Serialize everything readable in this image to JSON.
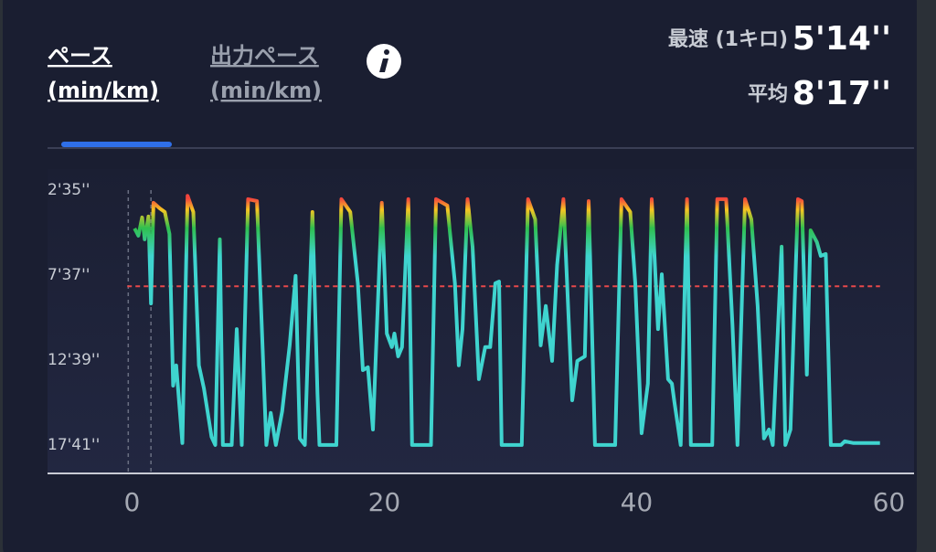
{
  "tabs": [
    {
      "title": "ペース",
      "unit": "(min/km)"
    },
    {
      "title": "出力ペース",
      "unit": "(min/km)"
    }
  ],
  "stats": [
    {
      "label": "最速 (1キロ)",
      "value": "5'14''"
    },
    {
      "label": "平均"
    }
  ],
  "chart_data": {
    "type": "line",
    "x": [
      0.2,
      0.5,
      0.8,
      1.0,
      1.3,
      1.5,
      1.7,
      2.2,
      2.6,
      2.97,
      3.26,
      3.5,
      3.99,
      4.4,
      4.86,
      5.3,
      5.7,
      6.3,
      6.6,
      6.96,
      7.2,
      7.9,
      8.3,
      8.7,
      9.2,
      9.9,
      10.65,
      11.0,
      11.4,
      11.9,
      12.5,
      12.97,
      13.3,
      13.7,
      14.3,
      14.7,
      14.86,
      16.2,
      16.6,
      17.3,
      17.9,
      18.3,
      18.7,
      19.1,
      19.8,
      20.2,
      20.6,
      20.8,
      21.1,
      21.4,
      21.9,
      22.2,
      23.7,
      24.1,
      25.0,
      25.6,
      25.9,
      26.2,
      26.6,
      27.0,
      27.5,
      28.0,
      28.4,
      28.8,
      29.1,
      29.3,
      30.9,
      31.4,
      31.96,
      32.4,
      32.8,
      33.3,
      33.7,
      34.2,
      34.9,
      35.3,
      35.9,
      36.2,
      36.7,
      38.3,
      38.8,
      39.5,
      39.9,
      40.4,
      40.9,
      41.2,
      41.7,
      42.0,
      42.5,
      42.8,
      43.0,
      43.5,
      44.0,
      44.3,
      46.0,
      46.4,
      47.1,
      47.6,
      48.0,
      48.6,
      49.1,
      49.6,
      50.1,
      50.5,
      50.8,
      51.5,
      51.8,
      52.2,
      52.8,
      53.1,
      53.5,
      53.8,
      54.3,
      54.6,
      55.0,
      55.4,
      56.2,
      56.5,
      57.2,
      59.3
    ],
    "values": [
      291,
      317,
      252,
      330,
      249,
      558,
      200,
      220,
      233,
      311,
      850,
      778,
      1054,
      175,
      233,
      778,
      860,
      1032,
      1061,
      330,
      1061,
      1061,
      649,
      1061,
      187,
      194,
      1061,
      947,
      1061,
      941,
      707,
      460,
      1038,
      1061,
      233,
      876,
      1061,
      1061,
      187,
      233,
      486,
      795,
      785,
      1006,
      200,
      665,
      713,
      665,
      746,
      713,
      187,
      1061,
      1061,
      187,
      210,
      486,
      778,
      649,
      187,
      356,
      827,
      713,
      713,
      486,
      480,
      1061,
      1061,
      187,
      259,
      707,
      567,
      762,
      421,
      187,
      902,
      762,
      746,
      194,
      1061,
      1061,
      187,
      233,
      486,
      1019,
      843,
      187,
      649,
      454,
      827,
      843,
      908,
      1061,
      187,
      1061,
      1061,
      187,
      187,
      632,
      1061,
      187,
      259,
      567,
      1038,
      1006,
      1061,
      356,
      1061,
      1006,
      187,
      194,
      811,
      298,
      340,
      389,
      382,
      1061,
      1061,
      1048,
      1054,
      1054
    ],
    "color_stops": [
      {
        "value": 185,
        "color": "#f2453d"
      },
      {
        "value": 225,
        "color": "#f6c622"
      },
      {
        "value": 290,
        "color": "#2fbf4f"
      },
      {
        "value": 390,
        "color": "#3fd4cf"
      }
    ],
    "xlim": [
      -6.7,
      62
    ],
    "xticks": [
      0,
      20,
      40,
      60
    ],
    "ylim": [
      1162,
      64
    ],
    "yticks": [
      {
        "value": 155,
        "label": "2'35''"
      },
      {
        "value": 457,
        "label": "7'37''"
      },
      {
        "value": 759,
        "label": "12'39''"
      },
      {
        "value": 1061,
        "label": "17'41''"
      }
    ],
    "average": {
      "value": 497,
      "label": "8'17''",
      "color": "#e8484a"
    },
    "markers": [
      -0.3,
      1.5
    ]
  }
}
